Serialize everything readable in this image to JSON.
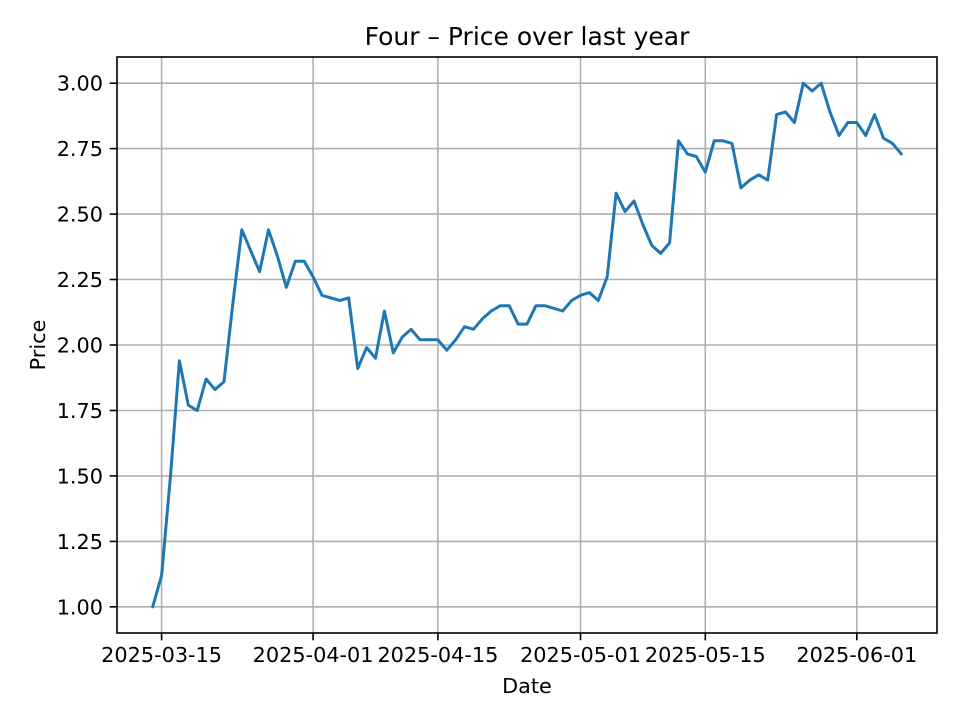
{
  "figure": {
    "title": "Four – Price over last year",
    "xlabel": "Date",
    "ylabel": "Price"
  },
  "chart_data": {
    "type": "line",
    "title": "Four – Price over last year",
    "xlabel": "Date",
    "ylabel": "Price",
    "grid": true,
    "legend": "none",
    "background_color": "#ffffff",
    "grid_color": "#b0b0b0",
    "spine_color": "#000000",
    "xlim": [
      "2025-03-10",
      "2025-06-10"
    ],
    "ylim": [
      0.9,
      3.1
    ],
    "xticks": [
      "2025-03-15",
      "2025-04-01",
      "2025-04-15",
      "2025-05-01",
      "2025-05-15",
      "2025-06-01"
    ],
    "yticks": [
      1.0,
      1.25,
      1.5,
      1.75,
      2.0,
      2.25,
      2.5,
      2.75,
      3.0
    ],
    "ytick_labels": [
      "1.00",
      "1.25",
      "1.50",
      "1.75",
      "2.00",
      "2.25",
      "2.50",
      "2.75",
      "3.00"
    ],
    "series": [
      {
        "name": "Price",
        "color": "#1f77b4",
        "x": [
          "2025-03-14",
          "2025-03-15",
          "2025-03-16",
          "2025-03-17",
          "2025-03-18",
          "2025-03-19",
          "2025-03-20",
          "2025-03-21",
          "2025-03-22",
          "2025-03-23",
          "2025-03-24",
          "2025-03-25",
          "2025-03-26",
          "2025-03-27",
          "2025-03-28",
          "2025-03-29",
          "2025-03-30",
          "2025-03-31",
          "2025-04-01",
          "2025-04-02",
          "2025-04-03",
          "2025-04-04",
          "2025-04-05",
          "2025-04-06",
          "2025-04-07",
          "2025-04-08",
          "2025-04-09",
          "2025-04-10",
          "2025-04-11",
          "2025-04-12",
          "2025-04-13",
          "2025-04-14",
          "2025-04-15",
          "2025-04-16",
          "2025-04-17",
          "2025-04-18",
          "2025-04-19",
          "2025-04-20",
          "2025-04-21",
          "2025-04-22",
          "2025-04-23",
          "2025-04-24",
          "2025-04-25",
          "2025-04-26",
          "2025-04-27",
          "2025-04-28",
          "2025-04-29",
          "2025-04-30",
          "2025-05-01",
          "2025-05-02",
          "2025-05-03",
          "2025-05-04",
          "2025-05-05",
          "2025-05-06",
          "2025-05-07",
          "2025-05-08",
          "2025-05-09",
          "2025-05-10",
          "2025-05-11",
          "2025-05-12",
          "2025-05-13",
          "2025-05-14",
          "2025-05-15",
          "2025-05-16",
          "2025-05-17",
          "2025-05-18",
          "2025-05-19",
          "2025-05-20",
          "2025-05-21",
          "2025-05-22",
          "2025-05-23",
          "2025-05-24",
          "2025-05-25",
          "2025-05-26",
          "2025-05-27",
          "2025-05-28",
          "2025-05-29",
          "2025-05-30",
          "2025-05-31",
          "2025-06-01",
          "2025-06-02",
          "2025-06-03",
          "2025-06-04",
          "2025-06-05",
          "2025-06-06"
        ],
        "y": [
          1.0,
          1.12,
          1.5,
          1.94,
          1.77,
          1.75,
          1.87,
          1.83,
          1.86,
          2.16,
          2.44,
          2.36,
          2.28,
          2.44,
          2.34,
          2.22,
          2.32,
          2.32,
          2.26,
          2.19,
          2.18,
          2.17,
          2.18,
          1.91,
          1.99,
          1.95,
          2.13,
          1.97,
          2.03,
          2.06,
          2.02,
          2.02,
          2.02,
          1.98,
          2.02,
          2.07,
          2.06,
          2.1,
          2.13,
          2.15,
          2.15,
          2.08,
          2.08,
          2.15,
          2.15,
          2.14,
          2.13,
          2.17,
          2.19,
          2.2,
          2.17,
          2.26,
          2.58,
          2.51,
          2.55,
          2.46,
          2.38,
          2.35,
          2.39,
          2.78,
          2.73,
          2.72,
          2.66,
          2.78,
          2.78,
          2.77,
          2.6,
          2.63,
          2.65,
          2.63,
          2.88,
          2.89,
          2.85,
          3.0,
          2.97,
          3.0,
          2.89,
          2.8,
          2.85,
          2.85,
          2.8,
          2.88,
          2.79,
          2.77,
          2.73
        ]
      }
    ]
  }
}
